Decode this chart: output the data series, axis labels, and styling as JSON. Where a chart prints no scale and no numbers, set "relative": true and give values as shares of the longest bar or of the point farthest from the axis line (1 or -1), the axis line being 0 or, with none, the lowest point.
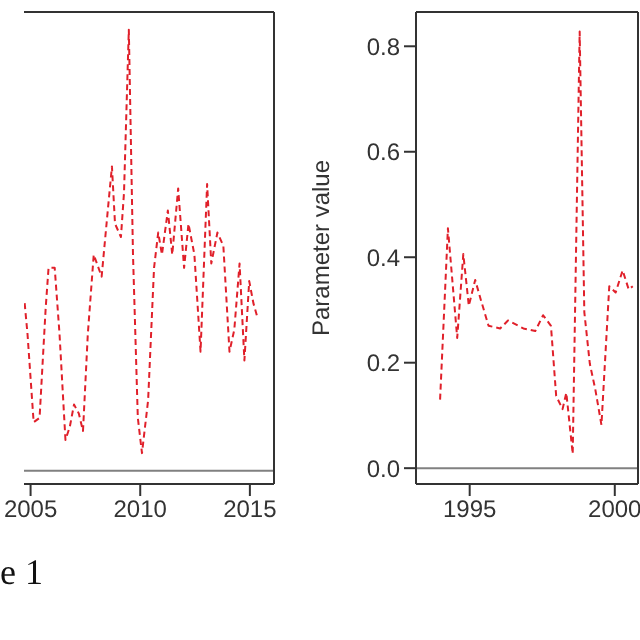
{
  "chart_data": [
    {
      "type": "line",
      "relative": true,
      "line_style": "dashed",
      "marker": "none",
      "xlim": [
        2004.7,
        2016.1
      ],
      "xticks": [
        2005,
        2010,
        2015
      ],
      "ref_lines": [
        {
          "axis": "y",
          "value": 0,
          "color": "#808080"
        }
      ],
      "annotations": [
        "e 1"
      ],
      "series": [
        {
          "color": "#e0202a",
          "x": [
            2004.73,
            2004.86,
            2005.14,
            2005.41,
            2005.69,
            2005.82,
            2006.1,
            2006.32,
            2006.59,
            2006.79,
            2006.98,
            2007.2,
            2007.39,
            2007.61,
            2007.88,
            2008.24,
            2008.52,
            2008.71,
            2008.85,
            2009.12,
            2009.26,
            2009.48,
            2009.67,
            2009.89,
            2010.08,
            2010.36,
            2010.63,
            2010.82,
            2010.99,
            2011.26,
            2011.46,
            2011.73,
            2012.0,
            2012.2,
            2012.47,
            2012.75,
            2013.05,
            2013.24,
            2013.52,
            2013.79,
            2014.07,
            2014.29,
            2014.53,
            2014.75,
            2014.97,
            2015.16,
            2015.33
          ],
          "values": [
            0.38,
            0.31,
            0.11,
            0.12,
            0.37,
            0.46,
            0.46,
            0.31,
            0.07,
            0.1,
            0.15,
            0.13,
            0.09,
            0.31,
            0.49,
            0.44,
            0.59,
            0.69,
            0.56,
            0.53,
            0.63,
            1,
            0.49,
            0.12,
            0.04,
            0.16,
            0.46,
            0.54,
            0.49,
            0.59,
            0.49,
            0.64,
            0.46,
            0.56,
            0.49,
            0.27,
            0.65,
            0.47,
            0.54,
            0.51,
            0.27,
            0.32,
            0.47,
            0.25,
            0.43,
            0.38,
            0.35
          ]
        }
      ]
    },
    {
      "type": "line",
      "line_style": "dashed",
      "marker": "none",
      "ylabel": "Parameter value",
      "xlim": [
        1993.15,
        2000.8
      ],
      "xticks": [
        1995,
        2000
      ],
      "ylim": [
        -0.03,
        0.865
      ],
      "yticks": [
        {
          "value": 0,
          "label": "0.0"
        },
        0.2,
        0.4,
        0.6,
        0.8
      ],
      "ref_lines": [
        {
          "axis": "y",
          "value": 0,
          "color": "#808080"
        }
      ],
      "series": [
        {
          "color": "#e0202a",
          "x": [
            1993.98,
            1994.25,
            1994.57,
            1994.78,
            1994.97,
            1995.19,
            1995.38,
            1995.65,
            1996.05,
            1996.32,
            1996.85,
            1997.26,
            1997.53,
            1997.8,
            1997.98,
            1998.2,
            1998.33,
            1998.55,
            1998.79,
            1998.95,
            1999.14,
            1999.33,
            1999.54,
            1999.81,
            2000.03,
            2000.27,
            2000.48,
            2000.62
          ],
          "values": [
            0.13,
            0.455,
            0.247,
            0.406,
            0.308,
            0.357,
            0.32,
            0.27,
            0.265,
            0.28,
            0.265,
            0.26,
            0.29,
            0.27,
            0.137,
            0.112,
            0.143,
            0.027,
            0.828,
            0.296,
            0.198,
            0.149,
            0.082,
            0.345,
            0.333,
            0.375,
            0.339,
            0.345
          ]
        }
      ]
    }
  ]
}
